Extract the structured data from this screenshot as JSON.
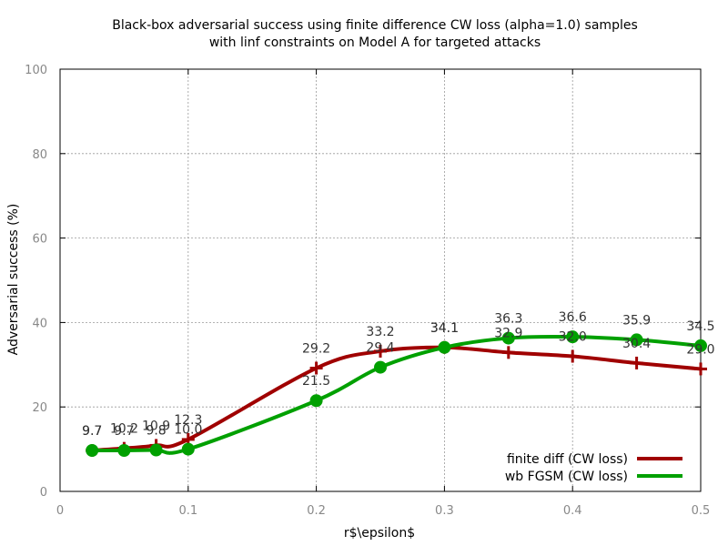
{
  "chart_data": {
    "type": "line",
    "title_lines": [
      "Black-box adversarial success using finite difference CW loss (alpha=1.0) samples",
      "with linf constraints on Model A for targeted attacks"
    ],
    "xlabel": "r$\\epsilon$",
    "ylabel": "Adversarial success (%)",
    "xlim": [
      0,
      0.5
    ],
    "ylim": [
      0,
      100
    ],
    "x_ticks": [
      "0",
      "0.1",
      "0.2",
      "0.3",
      "0.4",
      "0.5"
    ],
    "y_ticks": [
      "0",
      "20",
      "40",
      "60",
      "80",
      "100"
    ],
    "grid": true,
    "legend_position": "bottom-right",
    "series": [
      {
        "name": "finite diff (CW loss)",
        "color": "#a00000",
        "marker": "plus",
        "x": [
          0.025,
          0.05,
          0.075,
          0.1,
          0.2,
          0.25,
          0.3,
          0.35,
          0.4,
          0.45,
          0.5
        ],
        "values": [
          9.7,
          10.2,
          10.9,
          12.3,
          29.2,
          33.2,
          34.1,
          32.9,
          32.0,
          30.4,
          29.0
        ],
        "labels": [
          "9.7",
          "10.2",
          "10.9",
          "12.3",
          "29.2",
          "33.2",
          "34.1",
          "32.9",
          "32.0",
          "30.4",
          "29.0"
        ]
      },
      {
        "name": "wb FGSM (CW loss)",
        "color": "#00a000",
        "marker": "circle",
        "x": [
          0.025,
          0.05,
          0.075,
          0.1,
          0.2,
          0.25,
          0.3,
          0.35,
          0.4,
          0.45,
          0.5
        ],
        "values": [
          9.7,
          9.7,
          9.8,
          10.0,
          21.5,
          29.4,
          34.1,
          36.3,
          36.6,
          35.9,
          34.5
        ],
        "labels": [
          "9.7",
          "9.7",
          "9.8",
          "10.0",
          "21.5",
          "29.4",
          "34.1",
          "36.3",
          "36.6",
          "35.9",
          "34.5"
        ]
      }
    ]
  }
}
